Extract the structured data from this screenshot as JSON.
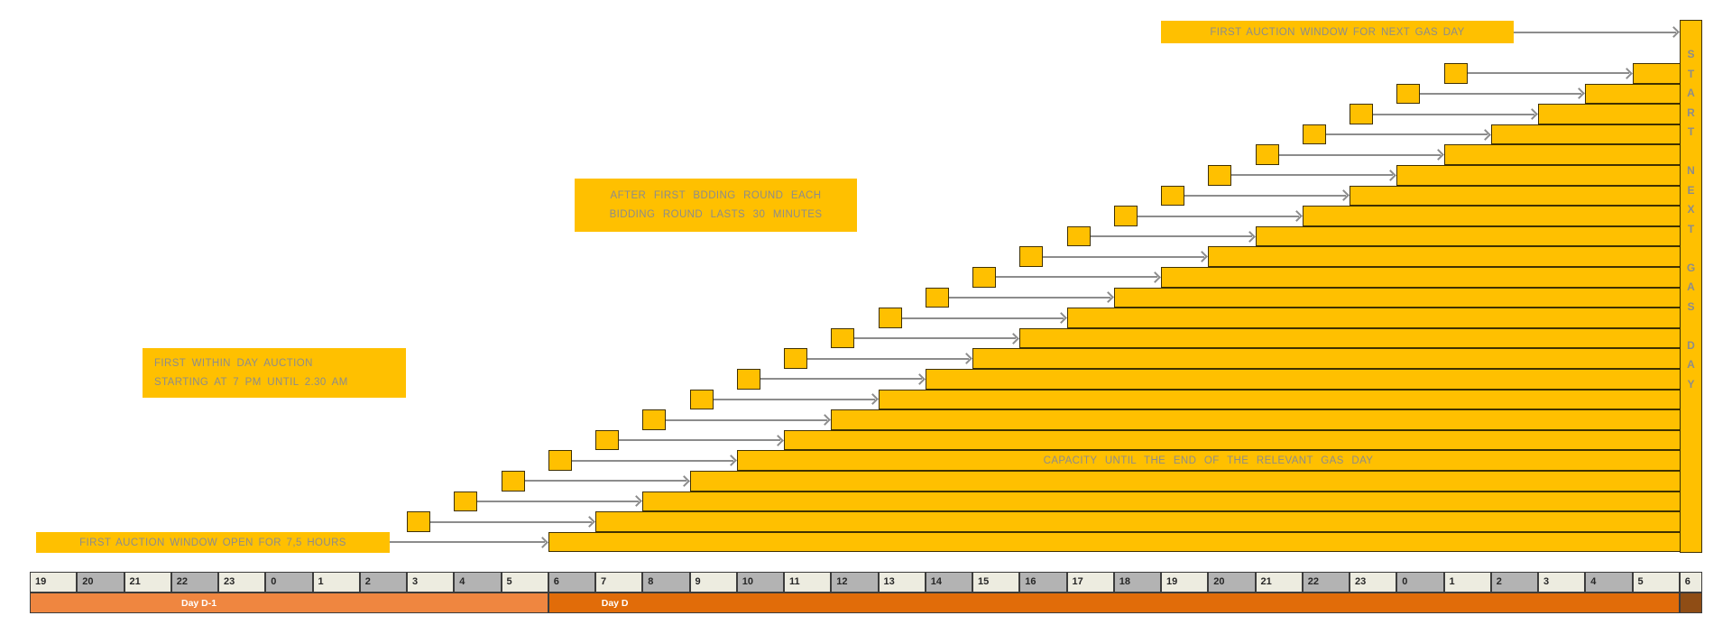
{
  "diagram": {
    "callouts": {
      "next_gas_day": "FIRST AUCTION WINDOW FOR NEXT GAS DAY",
      "bidding_round_line1": "AFTER FIRST BDDING ROUND EACH",
      "bidding_round_line2": "BIDDING ROUND LASTS 30 MINUTES",
      "within_day_line1": "FIRST WITHIN DAY AUCTION",
      "within_day_line2": "STARTING AT 7 PM UNTIL 2.30 AM",
      "first_window": "FIRST AUCTION WINDOW OPEN FOR 7,5 HOURS",
      "capacity": "CAPACITY UNTIL THE END OF THE RELEVANT GAS DAY",
      "start_next_gas_day": "START NEXT GAS DAY"
    },
    "staircase": {
      "bar_count": 24,
      "first_bar_start_cell": 11,
      "last_bar_start_cell": 34,
      "square_gap_cells": 3.5,
      "square_width_cells": 0.5
    },
    "axis": {
      "hours": [
        "19",
        "20",
        "21",
        "22",
        "23",
        "0",
        "1",
        "2",
        "3",
        "4",
        "5",
        "6",
        "7",
        "8",
        "9",
        "10",
        "11",
        "12",
        "13",
        "14",
        "15",
        "16",
        "17",
        "18",
        "19",
        "20",
        "21",
        "22",
        "23",
        "0",
        "1",
        "2",
        "3",
        "4",
        "5",
        "6"
      ],
      "day_bands": [
        {
          "label": "Day D-1",
          "cells": 11
        },
        {
          "label": "Day D",
          "cells": 24
        },
        {
          "label": "",
          "cells": 0.5
        }
      ]
    },
    "colors": {
      "bar_fill": "#FFC000",
      "bar_border": "#3F3000",
      "callout_text": "#8C8C8C",
      "arrow": "#8C8C8C",
      "cell_light": "#EDECE0",
      "cell_gray": "#B3B3B3",
      "cell_border": "#3C3C3C",
      "hour_text": "#262626",
      "day_d1_fill": "#EF8640",
      "day_d_fill": "#E16C09",
      "day_end_fill": "#8F4D15",
      "day_text": "#FFFFFF"
    }
  }
}
